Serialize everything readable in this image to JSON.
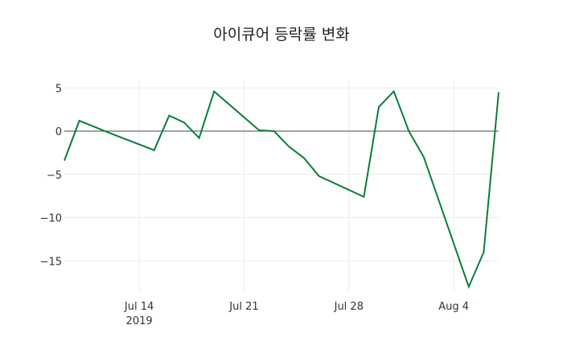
{
  "chart_data": {
    "type": "line",
    "title": "아이큐어 등락률 변화",
    "xlabel": "",
    "ylabel": "",
    "x": [
      "2019-07-09",
      "2019-07-10",
      "2019-07-11",
      "2019-07-12",
      "2019-07-15",
      "2019-07-16",
      "2019-07-17",
      "2019-07-18",
      "2019-07-19",
      "2019-07-22",
      "2019-07-23",
      "2019-07-24",
      "2019-07-25",
      "2019-07-26",
      "2019-07-29",
      "2019-07-30",
      "2019-07-31",
      "2019-08-01",
      "2019-08-02",
      "2019-08-05",
      "2019-08-06",
      "2019-08-07"
    ],
    "series": [
      {
        "name": "등락률",
        "color": "#0a7d3e",
        "values": [
          -3.4,
          1.2,
          0.5,
          -0.2,
          -2.2,
          1.8,
          1.0,
          -0.8,
          4.6,
          0.1,
          0.0,
          -1.8,
          -3.1,
          -5.2,
          -7.6,
          2.8,
          4.6,
          0.0,
          -3.0,
          -18.0,
          -14.0,
          4.5
        ]
      }
    ],
    "x_ticks": [
      {
        "date": "2019-07-14",
        "label": "Jul 14",
        "sublabel": "2019"
      },
      {
        "date": "2019-07-21",
        "label": "Jul 21"
      },
      {
        "date": "2019-07-28",
        "label": "Jul 28"
      },
      {
        "date": "2019-08-04",
        "label": "Aug 4"
      }
    ],
    "y_ticks": [
      5,
      0,
      -5,
      -10,
      -15
    ],
    "y_tick_labels": [
      "5",
      "0",
      "−5",
      "−10",
      "−15"
    ],
    "ylim": [
      -19,
      5.8
    ],
    "xlim": [
      "2019-07-09",
      "2019-08-07"
    ],
    "grid": true,
    "zero_line": true,
    "legend": "none"
  },
  "title": "아이큐어 등락률 변화"
}
